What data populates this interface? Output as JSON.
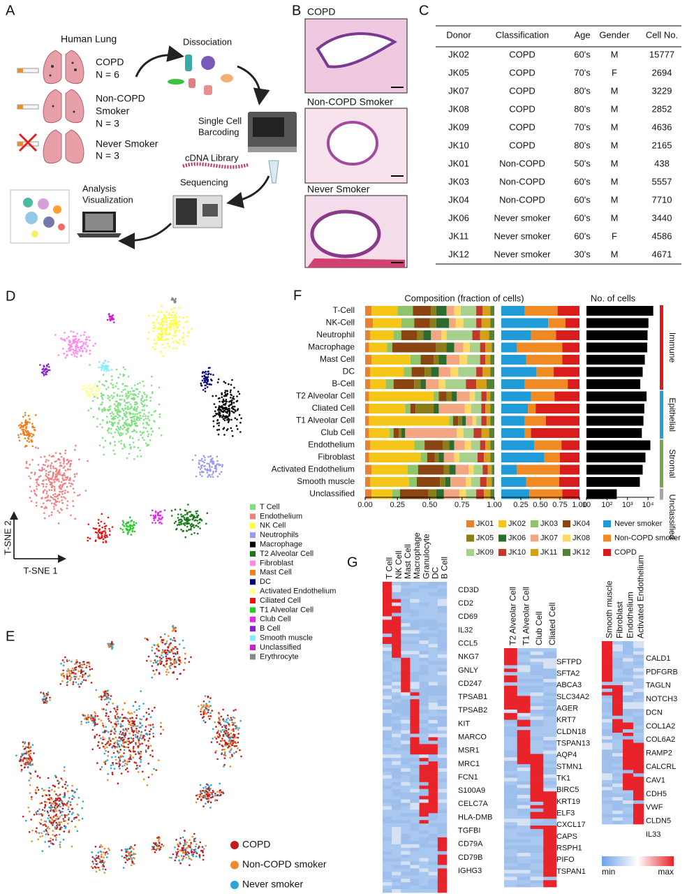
{
  "panel_labels": [
    "A",
    "B",
    "C",
    "D",
    "E",
    "F",
    "G"
  ],
  "panel_a": {
    "title": "Human Lung",
    "groups": [
      {
        "lines": [
          "COPD"
        ],
        "n": "N = 6"
      },
      {
        "lines": [
          "Non-COPD",
          "Smoker"
        ],
        "n": "N = 3"
      },
      {
        "lines": [
          "Never Smoker"
        ],
        "n": "N = 3"
      }
    ],
    "steps": [
      {
        "lines": [
          "Dissociation"
        ]
      },
      {
        "lines": [
          "Single Cell",
          "Barcoding"
        ]
      },
      {
        "lines": [
          "cDNA Library"
        ]
      },
      {
        "lines": [
          "Sequencing"
        ]
      },
      {
        "lines": [
          "Analysis",
          "Visualization"
        ]
      }
    ]
  },
  "panel_b": {
    "labels": [
      "COPD",
      "Non-COPD Smoker",
      "Never Smoker"
    ]
  },
  "table": {
    "header": [
      "Donor",
      "Classification",
      "Age",
      "Gender",
      "Cell No."
    ],
    "rows": [
      [
        "JK02",
        "COPD",
        "60's",
        "M",
        15777
      ],
      [
        "JK05",
        "COPD",
        "70's",
        "F",
        2694
      ],
      [
        "JK07",
        "COPD",
        "80's",
        "M",
        3229
      ],
      [
        "JK08",
        "COPD",
        "80's",
        "M",
        2852
      ],
      [
        "JK09",
        "COPD",
        "70's",
        "M",
        4636
      ],
      [
        "JK10",
        "COPD",
        "80's",
        "M",
        2165
      ],
      [
        "JK01",
        "Non-COPD",
        "50's",
        "M",
        438
      ],
      [
        "JK03",
        "Non-COPD",
        "60's",
        "M",
        5557
      ],
      [
        "JK04",
        "Non-COPD",
        "60's",
        "M",
        7710
      ],
      [
        "JK06",
        "Never smoker",
        "60's",
        "M",
        3440
      ],
      [
        "JK11",
        "Never smoker",
        "60's",
        "F",
        4586
      ],
      [
        "JK12",
        "Never smoker",
        "30's",
        "M",
        4671
      ]
    ]
  },
  "panel_d": {
    "y_axis": "T-SNE 2",
    "x_axis": "T-SNE 1",
    "legend": [
      {
        "name": "T Cell",
        "color": "#7ee07e"
      },
      {
        "name": "Endothelium",
        "color": "#f08080"
      },
      {
        "name": "NK Cell",
        "color": "#ffff33"
      },
      {
        "name": "Neutrophils",
        "color": "#9999ee"
      },
      {
        "name": "Macrophage",
        "color": "#000000"
      },
      {
        "name": "T2 Alveolar Cell",
        "color": "#1a7a1a"
      },
      {
        "name": "Fibroblast",
        "color": "#ff88ee"
      },
      {
        "name": "Mast Cell",
        "color": "#f07f20"
      },
      {
        "name": "DC",
        "color": "#000080"
      },
      {
        "name": "Activated Endothelium",
        "color": "#ffff99"
      },
      {
        "name": "Ciliated Cell",
        "color": "#ee1111"
      },
      {
        "name": "T1 Alveolar Cell",
        "color": "#22cc22"
      },
      {
        "name": "Club Cell",
        "color": "#ee22ee"
      },
      {
        "name": "B Cell",
        "color": "#8822cc"
      },
      {
        "name": "Smooth muscle",
        "color": "#88eeff"
      },
      {
        "name": "Unclassified",
        "color": "#cc22cc"
      },
      {
        "name": "Erythrocyte",
        "color": "#888888"
      }
    ]
  },
  "panel_e": {
    "legend": [
      {
        "name": "COPD",
        "color": "#c41a1a"
      },
      {
        "name": "Non-COPD smoker",
        "color": "#ee8a2a"
      },
      {
        "name": "Never smoker",
        "color": "#2aa6d6"
      }
    ]
  },
  "chart_data": [
    {
      "type": "bar",
      "orientation": "horizontal",
      "stacked": true,
      "title": "Composition (fraction of cells)",
      "categories": [
        "T-Cell",
        "NK-Cell",
        "Neutrophil",
        "Macrophage",
        "Mast Cell",
        "DC",
        "B-Cell",
        "T2 Alveolar Cell",
        "Cliated Cell",
        "T1 Alveolar Cell",
        "Club Cell",
        "Endothelium",
        "Fibroblast",
        "Activated Endothelium",
        "Smooth muscle",
        "Unclassified"
      ],
      "series": [
        {
          "name": "JK01",
          "color": "#e8822e",
          "values": [
            0.05,
            0.06,
            0.04,
            0.03,
            0.05,
            0.04,
            0.04,
            0.03,
            0.03,
            0.03,
            0.03,
            0.04,
            0.03,
            0.05,
            0.04,
            0.05
          ]
        },
        {
          "name": "JK02",
          "color": "#f5c518",
          "values": [
            0.2,
            0.22,
            0.18,
            0.14,
            0.3,
            0.26,
            0.12,
            0.5,
            0.28,
            0.62,
            0.16,
            0.34,
            0.4,
            0.28,
            0.3,
            0.16
          ]
        },
        {
          "name": "JK03",
          "color": "#8fc46a",
          "values": [
            0.12,
            0.1,
            0.06,
            0.04,
            0.08,
            0.06,
            0.06,
            0.04,
            0.04,
            0.03,
            0.03,
            0.08,
            0.05,
            0.08,
            0.06,
            0.06
          ]
        },
        {
          "name": "JK04",
          "color": "#8b4513",
          "values": [
            0.14,
            0.12,
            0.12,
            0.34,
            0.1,
            0.1,
            0.16,
            0.06,
            0.04,
            0.04,
            0.04,
            0.14,
            0.06,
            0.2,
            0.18,
            0.22
          ]
        },
        {
          "name": "JK05",
          "color": "#8b7d1a",
          "values": [
            0.04,
            0.05,
            0.05,
            0.08,
            0.04,
            0.05,
            0.05,
            0.04,
            0.14,
            0.03,
            0.02,
            0.05,
            0.03,
            0.04,
            0.04,
            0.06
          ]
        },
        {
          "name": "JK06",
          "color": "#2e6b2e",
          "values": [
            0.08,
            0.1,
            0.06,
            0.06,
            0.06,
            0.06,
            0.04,
            0.04,
            0.04,
            0.03,
            0.03,
            0.04,
            0.04,
            0.05,
            0.04,
            0.06
          ]
        },
        {
          "name": "JK07",
          "color": "#f4a582",
          "values": [
            0.06,
            0.05,
            0.08,
            0.07,
            0.1,
            0.09,
            0.1,
            0.1,
            0.2,
            0.05,
            0.4,
            0.08,
            0.08,
            0.1,
            0.12,
            0.12
          ]
        },
        {
          "name": "JK08",
          "color": "#ffd966",
          "values": [
            0.05,
            0.06,
            0.04,
            0.05,
            0.06,
            0.06,
            0.05,
            0.04,
            0.05,
            0.03,
            0.05,
            0.05,
            0.04,
            0.04,
            0.04,
            0.05
          ]
        },
        {
          "name": "JK09",
          "color": "#a9d18e",
          "values": [
            0.12,
            0.1,
            0.2,
            0.08,
            0.1,
            0.14,
            0.16,
            0.05,
            0.08,
            0.04,
            0.08,
            0.07,
            0.14,
            0.07,
            0.07,
            0.08
          ]
        },
        {
          "name": "JK10",
          "color": "#c0392b",
          "values": [
            0.05,
            0.04,
            0.06,
            0.04,
            0.04,
            0.05,
            0.08,
            0.04,
            0.03,
            0.04,
            0.06,
            0.04,
            0.05,
            0.04,
            0.05,
            0.06
          ]
        },
        {
          "name": "JK11",
          "color": "#d4a017",
          "values": [
            0.06,
            0.07,
            0.07,
            0.05,
            0.04,
            0.06,
            0.08,
            0.03,
            0.04,
            0.03,
            0.06,
            0.04,
            0.05,
            0.03,
            0.04,
            0.05
          ]
        },
        {
          "name": "JK12",
          "color": "#548235",
          "values": [
            0.03,
            0.03,
            0.04,
            0.02,
            0.03,
            0.03,
            0.06,
            0.03,
            0.03,
            0.03,
            0.04,
            0.03,
            0.03,
            0.02,
            0.02,
            0.03
          ]
        }
      ],
      "xlim": [
        0,
        1
      ],
      "xticks": [
        {
          "value": 0,
          "label": "0.00"
        },
        0.25,
        {
          "value": 0.5,
          "label": "0.50"
        },
        0.75,
        {
          "value": 1,
          "label": "1.00"
        }
      ]
    },
    {
      "type": "bar",
      "orientation": "horizontal",
      "stacked": true,
      "series": [
        {
          "name": "Never smoker",
          "color": "#1f9bd7",
          "values": [
            0.3,
            0.6,
            0.38,
            0.2,
            0.32,
            0.45,
            0.3,
            0.38,
            0.34,
            0.3,
            0.3,
            0.42,
            0.55,
            0.2,
            0.32,
            0.36
          ]
        },
        {
          "name": "Non-COPD smoker",
          "color": "#f08a24",
          "values": [
            0.42,
            0.22,
            0.32,
            0.58,
            0.46,
            0.22,
            0.55,
            0.3,
            0.1,
            0.27,
            0.08,
            0.35,
            0.2,
            0.55,
            0.42,
            0.42
          ]
        },
        {
          "name": "COPD",
          "color": "#d91c1c",
          "values": [
            0.28,
            0.18,
            0.3,
            0.22,
            0.22,
            0.33,
            0.15,
            0.32,
            0.56,
            0.43,
            0.62,
            0.23,
            0.25,
            0.25,
            0.26,
            0.22
          ]
        }
      ],
      "xlim": [
        0,
        1
      ],
      "xticks": [
        0.25,
        {
          "value": 0.5,
          "label": "0.50"
        },
        0.75,
        {
          "value": 1,
          "label": "1.00"
        }
      ]
    },
    {
      "type": "bar",
      "orientation": "horizontal",
      "title": "No. of cells",
      "log_scale": true,
      "color": "#000000",
      "values": [
        18000,
        10500,
        9500,
        9200,
        7000,
        5500,
        4200,
        8500,
        6600,
        6000,
        5000,
        13000,
        7500,
        5500,
        4000,
        300
      ],
      "xlim": [
        10,
        20000
      ],
      "xticks": [
        10,
        {
          "value": 100,
          "label": "10²"
        },
        {
          "value": 1000,
          "label": "10³"
        },
        {
          "value": 10000,
          "label": "10⁴"
        }
      ]
    }
  ],
  "panel_f_groups": [
    {
      "name": "Immune",
      "color": "#e8151b"
    },
    {
      "name": "Epithelial",
      "color": "#1fa0d8"
    },
    {
      "name": "Stromal",
      "color": "#70ad47"
    },
    {
      "name": "Unclassified",
      "color": "#a6a6a6"
    }
  ],
  "panel_g": {
    "heatmaps": [
      {
        "columns": [
          "T Cell",
          "NK Cell",
          "Mast Cell",
          "Macrophage",
          "Granulocyte",
          "DC",
          "B Cell"
        ],
        "genes": [
          "CD3D",
          "CD2",
          "CD69",
          "IL32",
          "CCL5",
          "NKG7",
          "GNLY",
          "CD247",
          "TPSAB1",
          "TPSAB2",
          "KIT",
          "MARCO",
          "MSR1",
          "MRC1",
          "FCN1",
          "S100A9",
          "CELC7A",
          "HLA-DMB",
          "TGFBI",
          "CD79A",
          "CD79B",
          "IGHG3"
        ]
      },
      {
        "columns": [
          "T2 Alveolar Cell",
          "T1 Alveolar Cell",
          "Club Cell",
          "Cliated Cell"
        ],
        "genes": [
          "SFTPD",
          "SFTA2",
          "ABCA3",
          "SLC34A2",
          "AGER",
          "KRT7",
          "CLDN18",
          "TSPAN13",
          "AQP4",
          "STMN1",
          "TK1",
          "BIRC5",
          "KRT19",
          "ELF3",
          "CXCL17",
          "CAPS",
          "RSPH1",
          "PIFO",
          "TSPAN1"
        ]
      },
      {
        "columns": [
          "Smooth muscle",
          "Fibroblast",
          "Endothelium",
          "Activated Endothelium"
        ],
        "genes": [
          "CALD1",
          "PDFGRB",
          "TAGLN",
          "NOTCH3",
          "DCN",
          "COL1A2",
          "COL6A2",
          "RAMP2",
          "CALCRL",
          "CAV1",
          "CDH5",
          "VWF",
          "CLDN5",
          "IL33"
        ]
      }
    ],
    "scale": {
      "min": "min",
      "max": "max"
    }
  }
}
